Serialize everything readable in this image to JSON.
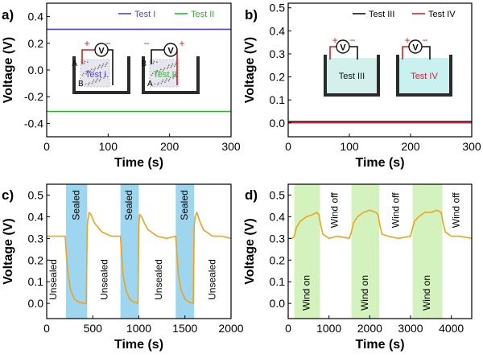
{
  "chart_data": [
    {
      "id": "a",
      "panel_label": "a)",
      "type": "line",
      "xlabel": "Time (s)",
      "ylabel": "Voltage (V)",
      "xlim": [
        0,
        300
      ],
      "ylim": [
        -0.5,
        0.5
      ],
      "xticks": [
        0,
        100,
        200,
        300
      ],
      "yticks": [
        -0.4,
        -0.2,
        0.0,
        0.2,
        0.4
      ],
      "ytick_labels": [
        "-0.4",
        "-0.2",
        "0.0",
        "0.2",
        "0.4"
      ],
      "legend": "top-right",
      "series": [
        {
          "name": "Test I",
          "color": "#5a3fd1",
          "x": [
            0,
            300
          ],
          "y": [
            0.305,
            0.305
          ]
        },
        {
          "name": "Test II",
          "color": "#2bb52b",
          "x": [
            0,
            300
          ],
          "y": [
            -0.31,
            -0.31
          ]
        }
      ],
      "insets": [
        {
          "label": "Test I",
          "color": "#5a3fd1",
          "left_letters": [
            "A",
            "B"
          ],
          "pos_sign": "+",
          "neg_sign": "−"
        },
        {
          "label": "Test II",
          "color": "#2bb52b",
          "left_letters": [
            "B",
            "A"
          ],
          "pos_sign": "+",
          "neg_sign": "−"
        }
      ]
    },
    {
      "id": "b",
      "panel_label": "b)",
      "type": "line",
      "xlabel": "Time (s)",
      "ylabel": "Voltage (V)",
      "xlim": [
        0,
        300
      ],
      "ylim": [
        -0.06,
        0.52
      ],
      "xticks": [
        0,
        100,
        200,
        300
      ],
      "yticks": [
        0.0,
        0.1,
        0.2,
        0.3,
        0.4,
        0.5
      ],
      "ytick_labels": [
        "0.0",
        "0.1",
        "0.2",
        "0.3",
        "0.4",
        "0.5"
      ],
      "legend": "top-right",
      "series": [
        {
          "name": "Test III",
          "color": "#111111",
          "x": [
            0,
            300
          ],
          "y": [
            0.005,
            0.005
          ]
        },
        {
          "name": "Test IV",
          "color": "#d4213a",
          "x": [
            0,
            300
          ],
          "y": [
            0.002,
            0.002
          ]
        }
      ],
      "insets": [
        {
          "label": "Test III",
          "color": "#111111",
          "pos_sign": "+",
          "neg_sign": "−"
        },
        {
          "label": "Test IV",
          "color": "#d4213a",
          "pos_sign": "+",
          "neg_sign": "−"
        }
      ]
    },
    {
      "id": "c",
      "panel_label": "c)",
      "type": "line",
      "xlabel": "Time (s)",
      "ylabel": "Voltage (V)",
      "xlim": [
        0,
        2000
      ],
      "ylim": [
        -0.07,
        0.55
      ],
      "xticks": [
        0,
        500,
        1000,
        1500,
        2000
      ],
      "yticks": [
        0.0,
        0.1,
        0.2,
        0.3,
        0.4,
        0.5
      ],
      "ytick_labels": [
        "0.0",
        "0.1",
        "0.2",
        "0.3",
        "0.4",
        "0.5"
      ],
      "series": [
        {
          "name": "Voltage",
          "color": "#f0a21e",
          "x": [
            0,
            100,
            200,
            210,
            230,
            260,
            300,
            350,
            400,
            430,
            440,
            460,
            480,
            520,
            600,
            700,
            800,
            810,
            830,
            860,
            900,
            950,
            990,
            1000,
            1010,
            1030,
            1060,
            1100,
            1200,
            1300,
            1400,
            1410,
            1430,
            1460,
            1500,
            1550,
            1590,
            1600,
            1610,
            1630,
            1660,
            1700,
            1800,
            1900,
            2000
          ],
          "y": [
            0.31,
            0.31,
            0.31,
            0.25,
            0.14,
            0.06,
            0.02,
            0.005,
            0.0,
            0.0,
            0.36,
            0.42,
            0.41,
            0.37,
            0.33,
            0.31,
            0.31,
            0.25,
            0.13,
            0.06,
            0.02,
            0.005,
            0.0,
            0.36,
            0.41,
            0.4,
            0.37,
            0.34,
            0.31,
            0.3,
            0.31,
            0.25,
            0.13,
            0.06,
            0.02,
            0.005,
            0.0,
            0.35,
            0.4,
            0.42,
            0.38,
            0.34,
            0.31,
            0.31,
            0.3
          ]
        }
      ],
      "shaded": [
        {
          "start": 210,
          "end": 440,
          "label": "Sealed",
          "color": "#9dd6ee"
        },
        {
          "start": 800,
          "end": 1000,
          "label": "Sealed",
          "color": "#9dd6ee"
        },
        {
          "start": 1400,
          "end": 1600,
          "label": "Sealed",
          "color": "#9dd6ee"
        }
      ],
      "annotations": [
        {
          "text": "Unsealed",
          "x": 75,
          "y": 0.11,
          "rotate": true
        },
        {
          "text": "Unsealed",
          "x": 630,
          "y": 0.11,
          "rotate": true
        },
        {
          "text": "Unsealed",
          "x": 1220,
          "y": 0.11,
          "rotate": true
        },
        {
          "text": "Unsealed",
          "x": 1800,
          "y": 0.11,
          "rotate": true
        }
      ]
    },
    {
      "id": "d",
      "panel_label": "d)",
      "type": "line",
      "xlabel": "Time (s)",
      "ylabel": "Voltage (V)",
      "xlim": [
        0,
        4500
      ],
      "ylim": [
        -0.07,
        0.55
      ],
      "xticks": [
        0,
        1000,
        2000,
        3000,
        4000
      ],
      "yticks": [
        0.0,
        0.1,
        0.2,
        0.3,
        0.4,
        0.5
      ],
      "ytick_labels": [
        "0.0",
        "0.1",
        "0.2",
        "0.3",
        "0.4",
        "0.5"
      ],
      "series": [
        {
          "name": "Voltage",
          "color": "#f0a21e",
          "x": [
            0,
            100,
            150,
            200,
            300,
            450,
            600,
            700,
            750,
            800,
            850,
            1000,
            1200,
            1500,
            1550,
            1600,
            1700,
            1850,
            2000,
            2150,
            2200,
            2250,
            2300,
            2450,
            2700,
            3000,
            3050,
            3100,
            3200,
            3350,
            3500,
            3650,
            3750,
            3800,
            3850,
            4000,
            4200,
            4500
          ],
          "y": [
            0.3,
            0.3,
            0.31,
            0.35,
            0.38,
            0.4,
            0.41,
            0.42,
            0.41,
            0.36,
            0.32,
            0.3,
            0.31,
            0.3,
            0.33,
            0.37,
            0.4,
            0.42,
            0.43,
            0.42,
            0.41,
            0.36,
            0.32,
            0.31,
            0.3,
            0.31,
            0.35,
            0.38,
            0.4,
            0.42,
            0.42,
            0.43,
            0.42,
            0.37,
            0.33,
            0.31,
            0.31,
            0.3
          ]
        }
      ],
      "shaded": [
        {
          "start": 150,
          "end": 780,
          "label": "Wind on",
          "color": "#d3f2bd"
        },
        {
          "start": 1550,
          "end": 2230,
          "label": "Wind on",
          "color": "#d3f2bd"
        },
        {
          "start": 3050,
          "end": 3780,
          "label": "Wind on",
          "color": "#d3f2bd"
        }
      ],
      "annotations": [
        {
          "text": "Wind off",
          "x": 1150,
          "y": 0.43,
          "rotate": true
        },
        {
          "text": "Wind off",
          "x": 2650,
          "y": 0.43,
          "rotate": true
        },
        {
          "text": "Wind off",
          "x": 4130,
          "y": 0.43,
          "rotate": true
        }
      ]
    }
  ]
}
